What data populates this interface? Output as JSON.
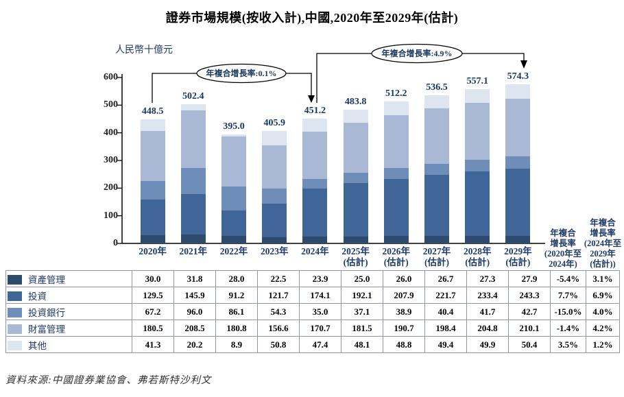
{
  "title": "證券市場規模(按收入計),中國,2020年至2029年(估計)",
  "unit_label": "人民幣十億元",
  "source": "資料來源:中國證券業協會、弗若斯特沙利文",
  "annotations": {
    "cagr_2020_2024": "年複合增長率:0.1%",
    "cagr_2024_2029": "年複合增長率:4.9%"
  },
  "cagr_column_headers": {
    "col1_lines": [
      "年複合",
      "增長率",
      "(2020年至",
      "2024年)"
    ],
    "col2_lines": [
      "年複合",
      "增長率",
      "(2024年至",
      "2029年",
      "(估計))"
    ]
  },
  "chart_data": {
    "type": "bar",
    "stacked": true,
    "title": "證券市場規模(按收入計),中國,2020年至2029年(估計)",
    "ylabel": "人民幣十億元",
    "ylim": [
      0,
      600
    ],
    "y_ticks": [
      0,
      100,
      200,
      300,
      400,
      500,
      600
    ],
    "grid": false,
    "legend_position": "table-bottom",
    "categories": [
      {
        "label": "2020年",
        "note": ""
      },
      {
        "label": "2021年",
        "note": ""
      },
      {
        "label": "2022年",
        "note": ""
      },
      {
        "label": "2023年",
        "note": ""
      },
      {
        "label": "2024年",
        "note": ""
      },
      {
        "label": "2025年",
        "note": "(估計)"
      },
      {
        "label": "2026年",
        "note": "(估計)"
      },
      {
        "label": "2027年",
        "note": "(估計)"
      },
      {
        "label": "2028年",
        "note": "(估計)"
      },
      {
        "label": "2029年",
        "note": "(估計)"
      }
    ],
    "totals": [
      448.5,
      502.4,
      395.0,
      405.9,
      451.2,
      483.8,
      512.2,
      536.5,
      557.1,
      574.3
    ],
    "series": [
      {
        "name": "資產管理",
        "color": "#2e4a6d",
        "values": [
          30.0,
          31.8,
          28.0,
          22.5,
          23.9,
          25.0,
          26.0,
          26.7,
          27.3,
          27.9
        ],
        "cagr_2020_2024": "-5.4%",
        "cagr_2024_2029": "3.1%"
      },
      {
        "name": "投資",
        "color": "#3f6697",
        "values": [
          129.5,
          145.9,
          91.2,
          121.7,
          174.1,
          192.1,
          207.9,
          221.7,
          233.4,
          243.3
        ],
        "cagr_2020_2024": "7.7%",
        "cagr_2024_2029": "6.9%"
      },
      {
        "name": "投資銀行",
        "color": "#6f8db9",
        "values": [
          67.2,
          96.0,
          86.1,
          54.3,
          35.0,
          37.1,
          38.9,
          40.4,
          41.7,
          42.7
        ],
        "cagr_2020_2024": "-15.0%",
        "cagr_2024_2029": "4.0%"
      },
      {
        "name": "財富管理",
        "color": "#a9b8d5",
        "values": [
          180.5,
          208.5,
          180.8,
          156.6,
          170.7,
          181.5,
          190.7,
          198.4,
          204.8,
          210.1
        ],
        "cagr_2020_2024": "-1.4%",
        "cagr_2024_2029": "4.2%"
      },
      {
        "name": "其他",
        "color": "#dde5f1",
        "values": [
          41.3,
          20.2,
          8.9,
          50.8,
          47.4,
          48.1,
          48.8,
          49.4,
          49.9,
          50.4
        ],
        "cagr_2020_2024": "3.5%",
        "cagr_2024_2029": "1.2%"
      }
    ]
  }
}
